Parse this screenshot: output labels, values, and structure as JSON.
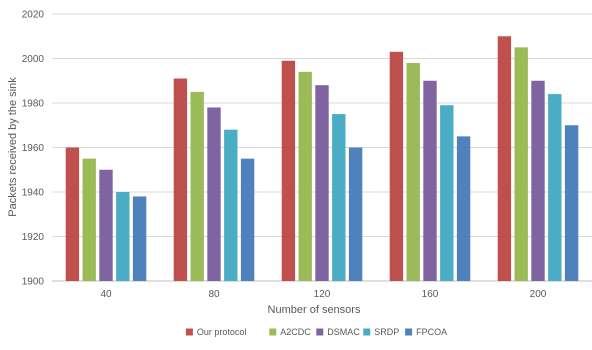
{
  "chart_data": {
    "type": "bar",
    "title": "",
    "xlabel": "Number of sensors",
    "ylabel": "Packets received by the sink",
    "categories": [
      "40",
      "80",
      "120",
      "160",
      "200"
    ],
    "ylim": [
      1900,
      2020
    ],
    "yticks": [
      1900,
      1920,
      1940,
      1960,
      1980,
      2000,
      2020
    ],
    "grid": true,
    "legend_position": "bottom",
    "series": [
      {
        "name": "Our protocol",
        "color": "#c0504d",
        "values": [
          1960,
          1991,
          1999,
          2003,
          2010
        ]
      },
      {
        "name": "A2CDC",
        "color": "#9bbb59",
        "values": [
          1955,
          1985,
          1994,
          1998,
          2005
        ]
      },
      {
        "name": "DSMAC",
        "color": "#8064a2",
        "values": [
          1950,
          1978,
          1988,
          1990,
          1990
        ]
      },
      {
        "name": "SRDP",
        "color": "#4bacc6",
        "values": [
          1940,
          1968,
          1975,
          1979,
          1984
        ]
      },
      {
        "name": "FPCOA",
        "color": "#4f81bd",
        "values": [
          1938,
          1955,
          1960,
          1965,
          1970
        ]
      }
    ]
  }
}
